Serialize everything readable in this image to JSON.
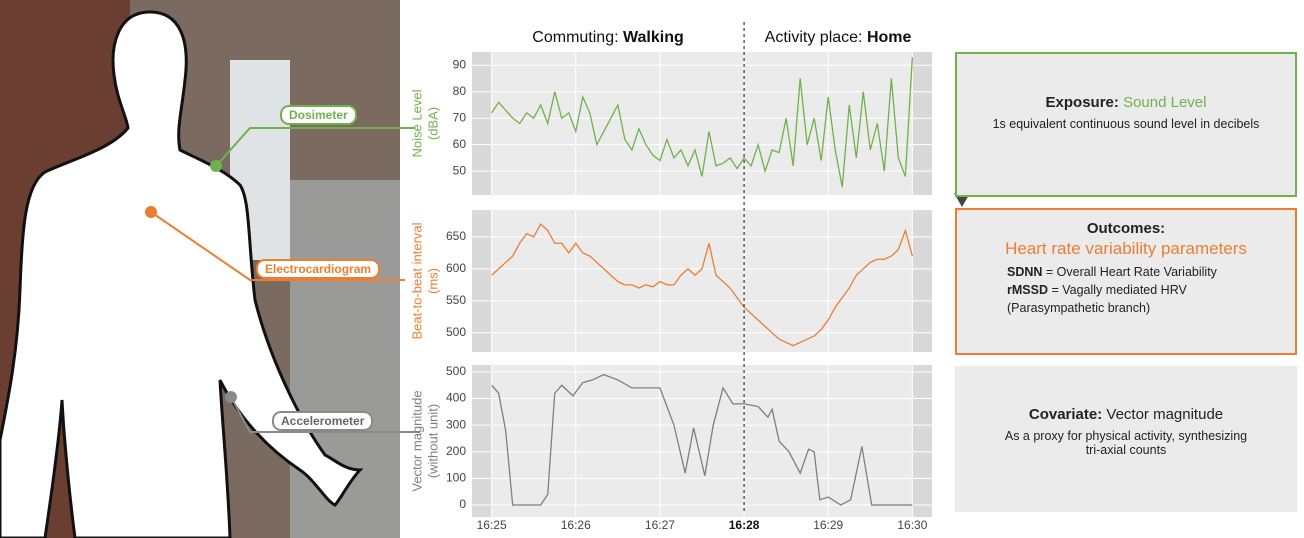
{
  "chart_data": [
    {
      "type": "line",
      "y_label": [
        "Noise Level",
        "(dBA)"
      ],
      "color": "#71b14c",
      "x": [
        0,
        5,
        10,
        15,
        20,
        25,
        30,
        35,
        40,
        45,
        50,
        55,
        60,
        65,
        70,
        75,
        80,
        85,
        90,
        95,
        100,
        105,
        110,
        115,
        120,
        125,
        130,
        135,
        140,
        145,
        150,
        155,
        160,
        165,
        170,
        175,
        180,
        185,
        190,
        195,
        200,
        205,
        210,
        215,
        220,
        225,
        230,
        235,
        240,
        245,
        250,
        255,
        260,
        265,
        270,
        275,
        280,
        285,
        290,
        295,
        300
      ],
      "values": [
        72,
        76,
        73,
        70,
        68,
        72,
        70,
        75,
        68,
        80,
        70,
        72,
        65,
        78,
        72,
        60,
        65,
        70,
        75,
        62,
        58,
        66,
        60,
        56,
        54,
        62,
        55,
        58,
        52,
        58,
        48,
        65,
        52,
        53,
        55,
        51,
        55,
        52,
        60,
        50,
        58,
        57,
        70,
        52,
        85,
        60,
        70,
        54,
        78,
        58,
        44,
        75,
        55,
        80,
        58,
        68,
        50,
        85,
        55,
        48,
        93
      ],
      "xlim": [
        -14,
        314
      ],
      "xticks": [
        0,
        60,
        120,
        180,
        240,
        300
      ],
      "ylim": [
        41,
        95
      ],
      "yticks": [
        50,
        60,
        70,
        80,
        90
      ]
    },
    {
      "type": "line",
      "y_label": [
        "Beat-to-beat interval",
        "(ms)"
      ],
      "color": "#ed7d31",
      "x": [
        0,
        5,
        10,
        15,
        20,
        25,
        30,
        35,
        40,
        45,
        50,
        55,
        60,
        65,
        70,
        75,
        80,
        85,
        90,
        95,
        100,
        105,
        110,
        115,
        120,
        125,
        130,
        135,
        140,
        145,
        150,
        155,
        160,
        165,
        170,
        175,
        180,
        185,
        190,
        195,
        200,
        205,
        210,
        215,
        220,
        225,
        230,
        235,
        240,
        245,
        250,
        255,
        260,
        265,
        270,
        275,
        280,
        285,
        290,
        295,
        300
      ],
      "values": [
        590,
        600,
        610,
        620,
        640,
        655,
        650,
        670,
        660,
        640,
        640,
        625,
        640,
        625,
        620,
        610,
        600,
        590,
        580,
        575,
        575,
        570,
        575,
        572,
        580,
        575,
        575,
        590,
        600,
        590,
        600,
        640,
        590,
        580,
        570,
        555,
        540,
        530,
        520,
        510,
        500,
        490,
        485,
        480,
        485,
        490,
        495,
        505,
        520,
        540,
        555,
        570,
        590,
        600,
        610,
        615,
        615,
        620,
        630,
        660,
        620
      ],
      "xlim": [
        -14,
        314
      ],
      "xticks": [
        0,
        60,
        120,
        180,
        240,
        300
      ],
      "ylim": [
        470,
        692
      ],
      "yticks": [
        500,
        550,
        600,
        650
      ]
    },
    {
      "type": "line",
      "y_label": [
        "Vector magnitude",
        "(without unit)"
      ],
      "color": "#7f7f7f",
      "x": [
        0,
        5,
        10,
        15,
        35,
        40,
        45,
        50,
        58,
        65,
        72,
        80,
        90,
        100,
        120,
        130,
        138,
        144,
        152,
        158,
        165,
        172,
        180,
        190,
        197,
        200,
        205,
        212,
        220,
        226,
        230,
        234,
        240,
        249,
        256,
        264,
        271,
        300
      ],
      "values": [
        450,
        420,
        280,
        0,
        0,
        40,
        420,
        450,
        410,
        460,
        470,
        490,
        470,
        440,
        440,
        300,
        120,
        290,
        110,
        300,
        440,
        380,
        380,
        370,
        330,
        360,
        240,
        200,
        120,
        210,
        200,
        20,
        30,
        0,
        20,
        220,
        0,
        0
      ],
      "xlim": [
        -14,
        314
      ],
      "xticks": [
        {
          "value": 0,
          "label": "16:25"
        },
        {
          "value": 60,
          "label": "16:26"
        },
        {
          "value": 120,
          "label": "16:27"
        },
        {
          "value": 180,
          "label": "16:28"
        },
        {
          "value": 240,
          "label": "16:29"
        },
        {
          "value": 300,
          "label": "16:30"
        }
      ],
      "ylim": [
        -45,
        526
      ],
      "yticks": [
        0,
        100,
        200,
        300,
        400,
        500
      ]
    }
  ],
  "phases": [
    {
      "label": "Commuting:",
      "value": "Walking"
    },
    {
      "label": "Activity place:",
      "value": "Home"
    }
  ],
  "phase_divider": 180,
  "sensors": [
    "Dosimeter",
    "Electrocardiogram",
    "Accelerometer"
  ],
  "boxes": [
    {
      "heading": "Exposure:",
      "subject": "Sound Level",
      "lines": [
        "1s equivalent continuous sound level in decibels"
      ]
    },
    {
      "heading": "Outcomes:",
      "subject": "Heart rate variability parameters",
      "terms": [
        {
          "term": "SDNN",
          "definition": "= Overall Heart Rate Variability"
        },
        {
          "term": "rMSSD",
          "definition": "= Vagally mediated HRV"
        }
      ],
      "lines": [
        "(Parasympathetic branch)"
      ]
    },
    {
      "heading": "Covariate:",
      "subject": "Vector magnitude",
      "lines": [
        "As a proxy for physical activity, synthesizing",
        "tri-axial counts"
      ]
    }
  ]
}
